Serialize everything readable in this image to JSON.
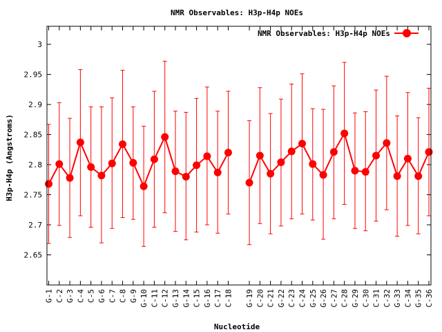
{
  "chart_data": {
    "type": "line",
    "title": "NMR Observables: H3p-H4p NOEs",
    "xlabel": "Nucleotide",
    "ylabel": "H3p-H4p (Angstroms)",
    "ylim": [
      2.6,
      3.03
    ],
    "yticks": [
      "2.65",
      "2.7",
      "2.75",
      "2.8",
      "2.85",
      "2.9",
      "2.95",
      "3"
    ],
    "legend": {
      "position": "top-right",
      "label": "NMR Observables: H3p-H4p NOEs"
    },
    "grid": false,
    "series": [
      {
        "name": "NMR Observables: H3p-H4p NOEs",
        "color": "#ff0000",
        "segments": [
          {
            "categories": [
              "G-1",
              "C-2",
              "G-3",
              "C-4",
              "C-5",
              "G-6",
              "C-7",
              "C-8",
              "G-9",
              "G-10",
              "C-11",
              "C-12",
              "G-13",
              "G-14",
              "C-15",
              "G-16",
              "C-17",
              "C-18"
            ],
            "values": [
              2.768,
              2.801,
              2.778,
              2.837,
              2.796,
              2.782,
              2.802,
              2.834,
              2.803,
              2.764,
              2.809,
              2.846,
              2.789,
              2.78,
              2.799,
              2.814,
              2.787,
              2.82
            ],
            "err_low": [
              2.669,
              2.699,
              2.679,
              2.715,
              2.696,
              2.67,
              2.694,
              2.712,
              2.709,
              2.664,
              2.696,
              2.72,
              2.689,
              2.675,
              2.688,
              2.7,
              2.686,
              2.718
            ],
            "err_high": [
              2.867,
              2.903,
              2.877,
              2.958,
              2.896,
              2.896,
              2.911,
              2.957,
              2.896,
              2.864,
              2.922,
              2.972,
              2.889,
              2.887,
              2.91,
              2.929,
              2.889,
              2.922
            ]
          },
          {
            "categories": [
              "G-19",
              "C-20",
              "C-21",
              "G-22",
              "C-23",
              "C-24",
              "G-25",
              "G-26",
              "C-27",
              "C-28",
              "G-29",
              "C-30",
              "C-31",
              "C-32",
              "G-33",
              "C-34",
              "G-35",
              "C-36"
            ],
            "values": [
              2.77,
              2.815,
              2.785,
              2.804,
              2.822,
              2.835,
              2.801,
              2.783,
              2.821,
              2.852,
              2.79,
              2.788,
              2.815,
              2.836,
              2.781,
              2.81,
              2.781,
              2.821
            ],
            "err_low": [
              2.667,
              2.702,
              2.685,
              2.698,
              2.71,
              2.718,
              2.708,
              2.676,
              2.71,
              2.734,
              2.694,
              2.69,
              2.706,
              2.725,
              2.681,
              2.699,
              2.685,
              2.715
            ],
            "err_high": [
              2.873,
              2.928,
              2.885,
              2.909,
              2.934,
              2.951,
              2.893,
              2.892,
              2.931,
              2.97,
              2.886,
              2.888,
              2.924,
              2.947,
              2.881,
              2.92,
              2.878,
              2.927
            ]
          }
        ]
      }
    ]
  }
}
